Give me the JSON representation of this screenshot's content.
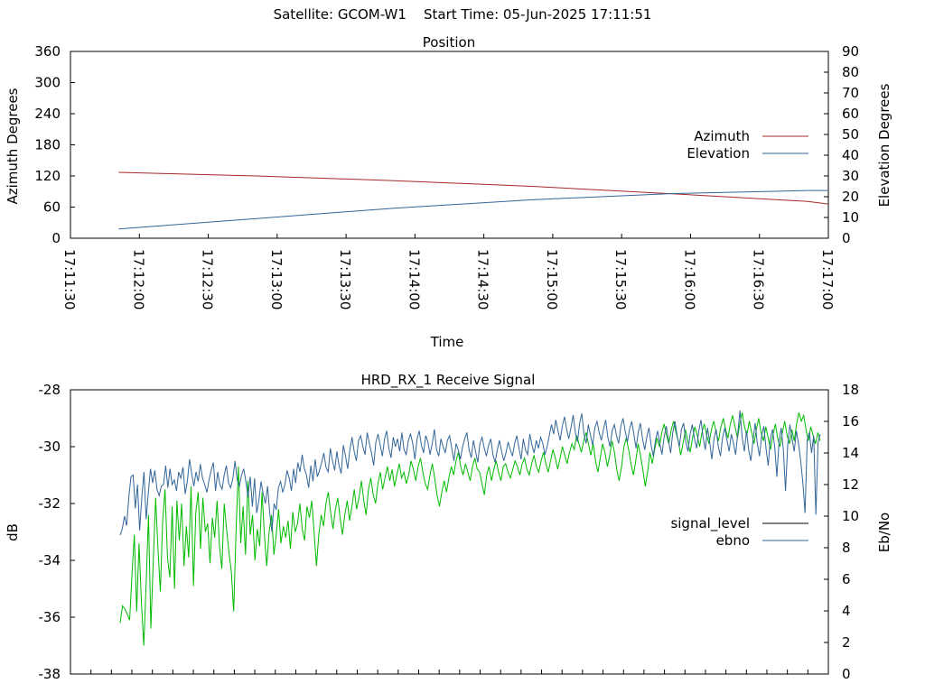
{
  "header": {
    "satellite_label": "Satellite: GCOM-W1",
    "start_time_label": "Start Time: 05-Jun-2025 17:11:51"
  },
  "chart_data": [
    {
      "type": "line",
      "title": "Position",
      "xlabel": "Time",
      "ylabel_left": "Azimuth Degrees",
      "ylabel_right": "Elevation Degrees",
      "x_ticks": [
        "17:11:30",
        "17:12:00",
        "17:12:30",
        "17:13:00",
        "17:13:30",
        "17:14:00",
        "17:14:30",
        "17:15:00",
        "17:15:30",
        "17:16:00",
        "17:16:30",
        "17:17:00"
      ],
      "xlim_seconds_after_171130": [
        0,
        330
      ],
      "ylim_left": [
        0,
        360
      ],
      "y_ticks_left": [
        "0",
        "60",
        "120",
        "180",
        "240",
        "300",
        "360"
      ],
      "ylim_right": [
        0,
        90
      ],
      "y_ticks_right": [
        "0",
        "10",
        "20",
        "30",
        "40",
        "50",
        "60",
        "70",
        "80",
        "90"
      ],
      "legend_position": "right-middle",
      "series": [
        {
          "name": "Azimuth",
          "axis": "left",
          "color": "#a52a2a",
          "x_times": [
            "17:11:51",
            "17:12:51",
            "17:13:51",
            "17:14:51",
            "17:15:51",
            "17:16:51",
            "17:17:00"
          ],
          "values": [
            127,
            120,
            111,
            100,
            86,
            71,
            66
          ]
        },
        {
          "name": "Elevation",
          "axis": "right",
          "color": "#336699",
          "x_times": [
            "17:11:51",
            "17:12:51",
            "17:13:51",
            "17:14:51",
            "17:15:51",
            "17:16:51",
            "17:17:00"
          ],
          "values": [
            4.5,
            9.5,
            14.5,
            18.5,
            21.5,
            23,
            23
          ]
        }
      ]
    },
    {
      "type": "line",
      "title": "HRD_RX_1 Receive Signal",
      "ylabel_left": "dB",
      "ylabel_right": "Eb/No",
      "ylim_left": [
        -38,
        -28
      ],
      "y_ticks_left": [
        "-38",
        "-36",
        "-34",
        "-32",
        "-30",
        "-28"
      ],
      "ylim_right": [
        0,
        18
      ],
      "y_ticks_right": [
        "0",
        "2",
        "4",
        "6",
        "8",
        "10",
        "12",
        "14",
        "16",
        "18"
      ],
      "legend_position": "right-middle",
      "series": [
        {
          "name": "signal_level",
          "axis": "left",
          "color": "#000000",
          "values": []
        },
        {
          "name": "ebno",
          "axis": "right",
          "color": "#336699",
          "values": [
            8.8,
            9.2,
            10.0,
            9.4,
            11.2,
            12.5,
            12.6,
            10.5,
            12.0,
            9.1,
            11.2,
            12.8,
            9.8,
            11.5,
            13.0,
            12.1,
            12.9,
            11.7,
            11.3,
            11.9,
            12.0,
            13.2,
            11.8,
            13.0,
            12.0,
            12.3,
            11.6,
            12.8,
            12.4,
            13.1,
            11.4,
            12.2,
            13.6,
            12.7,
            11.9,
            12.8,
            12.2,
            13.3,
            12.4,
            12.0,
            11.5,
            12.3,
            12.9,
            13.4,
            11.6,
            12.8,
            12.0,
            11.7,
            12.6,
            13.2,
            12.1,
            11.8,
            12.4,
            13.5,
            12.3,
            11.9,
            12.6,
            13.0,
            12.2,
            11.2,
            12.5,
            10.6,
            12.4,
            10.2,
            11.0,
            12.2,
            11.4,
            10.8,
            11.9,
            10.2,
            9.0,
            10.8,
            10.4,
            11.8,
            12.2,
            11.5,
            12.0,
            12.9,
            12.4,
            11.6,
            13.0,
            12.1,
            13.4,
            12.8,
            13.9,
            13.0,
            12.6,
            11.8,
            13.2,
            12.2,
            13.6,
            12.5,
            12.9,
            13.4,
            14.0,
            13.1,
            12.8,
            14.3,
            13.5,
            12.9,
            14.1,
            13.2,
            12.7,
            14.5,
            13.8,
            13.0,
            14.2,
            15.0,
            14.1,
            13.5,
            14.8,
            15.1,
            14.4,
            13.9,
            15.3,
            14.6,
            14.0,
            13.2,
            14.7,
            15.2,
            14.5,
            13.8,
            14.9,
            15.4,
            14.3,
            13.7,
            15.0,
            14.4,
            14.9,
            14.1,
            15.3,
            14.2,
            13.9,
            14.8,
            15.2,
            14.6,
            13.6,
            14.9,
            15.4,
            14.5,
            14.0,
            15.1,
            14.7,
            13.9,
            14.6,
            15.5,
            14.2,
            13.8,
            14.9,
            14.4,
            14.0,
            14.8,
            15.1,
            14.3,
            13.5,
            14.6,
            14.2,
            13.6,
            14.4,
            14.9,
            15.3,
            14.2,
            13.7,
            14.8,
            14.1,
            13.4,
            14.6,
            15.0,
            14.3,
            13.8,
            14.5,
            14.9,
            13.9,
            13.4,
            14.2,
            14.8,
            14.1,
            13.5,
            14.0,
            14.7,
            14.2,
            13.8,
            14.6,
            15.1,
            14.3,
            13.6,
            14.9,
            14.2,
            13.9,
            15.2,
            14.5,
            14.0,
            14.8,
            14.3,
            15.0,
            14.6,
            13.9,
            14.4,
            15.1,
            15.8,
            15.2,
            16.1,
            15.4,
            14.8,
            15.7,
            16.3,
            15.5,
            14.9,
            15.6,
            16.4,
            15.3,
            14.7,
            15.9,
            16.5,
            15.2,
            14.6,
            15.8,
            15.1,
            14.5,
            15.6,
            16.0,
            15.3,
            14.8,
            15.5,
            16.1,
            15.0,
            14.4,
            15.4,
            15.8,
            15.1,
            14.6,
            15.7,
            16.2,
            15.4,
            14.7,
            15.5,
            16.0,
            15.2,
            14.3,
            15.3,
            15.9,
            14.9,
            14.2,
            15.0,
            15.6,
            14.5,
            13.8,
            14.8,
            15.4,
            14.6,
            13.9,
            15.0,
            15.7,
            14.8,
            14.0,
            15.3,
            16.0,
            15.1,
            14.4,
            15.5,
            15.9,
            14.7,
            14.1,
            15.2,
            15.8,
            14.9,
            14.3,
            15.4,
            16.1,
            15.0,
            14.2,
            15.6,
            14.7,
            13.6,
            14.9,
            15.5,
            14.4,
            13.8,
            15.0,
            15.6,
            14.8,
            14.1,
            15.2,
            14.6,
            13.9,
            15.3,
            16.7,
            15.0,
            14.1,
            15.4,
            14.2,
            13.5,
            14.8,
            15.9,
            14.6,
            13.8,
            15.1,
            15.7,
            14.3,
            13.2,
            14.9,
            15.5,
            14.4,
            12.5,
            14.7,
            15.6,
            14.2,
            11.6,
            14.5,
            15.8,
            14.9,
            14.1,
            15.4,
            14.6,
            13.5,
            12.1,
            10.2,
            14.8,
            15.3,
            14.0,
            15.1,
            10.1,
            14.7,
            15.2
          ]
        },
        {
          "name": "",
          "axis": "left",
          "color": "#00bb00",
          "values": [
            -36.2,
            -35.6,
            -35.7,
            -35.9,
            -36.1,
            -34.5,
            -33.1,
            -35.8,
            -33.4,
            -35.5,
            -37.0,
            -34.8,
            -32.4,
            -36.4,
            -34.0,
            -31.8,
            -33.6,
            -35.1,
            -32.6,
            -31.5,
            -33.9,
            -34.6,
            -32.1,
            -35.0,
            -31.9,
            -33.3,
            -32.0,
            -34.2,
            -32.8,
            -33.9,
            -31.4,
            -34.9,
            -32.3,
            -31.6,
            -33.6,
            -31.8,
            -33.0,
            -32.7,
            -34.1,
            -32.5,
            -33.2,
            -31.9,
            -33.5,
            -34.3,
            -32.0,
            -32.9,
            -33.7,
            -34.4,
            -35.8,
            -33.0,
            -30.7,
            -33.4,
            -32.1,
            -33.8,
            -31.2,
            -33.1,
            -32.4,
            -34.0,
            -32.9,
            -33.5,
            -31.6,
            -33.1,
            -34.2,
            -33.0,
            -32.4,
            -33.8,
            -33.1,
            -32.2,
            -33.4,
            -32.8,
            -33.2,
            -32.6,
            -33.6,
            -32.3,
            -33.0,
            -32.7,
            -32.0,
            -32.9,
            -33.3,
            -32.1,
            -32.5,
            -31.9,
            -33.0,
            -34.2,
            -33.1,
            -32.4,
            -32.8,
            -32.0,
            -31.6,
            -32.3,
            -32.9,
            -32.2,
            -31.8,
            -32.5,
            -33.1,
            -32.4,
            -31.9,
            -32.6,
            -32.1,
            -31.5,
            -32.2,
            -31.8,
            -31.2,
            -31.9,
            -32.4,
            -31.5,
            -31.1,
            -31.7,
            -32.0,
            -31.3,
            -30.9,
            -31.5,
            -31.1,
            -30.7,
            -31.2,
            -30.8,
            -31.4,
            -31.0,
            -30.6,
            -31.1,
            -30.9,
            -31.3,
            -31.0,
            -30.5,
            -30.8,
            -31.2,
            -30.7,
            -30.4,
            -30.9,
            -31.3,
            -31.5,
            -31.0,
            -30.6,
            -31.1,
            -31.7,
            -32.1,
            -31.6,
            -31.2,
            -31.6,
            -31.1,
            -30.7,
            -31.0,
            -30.5,
            -30.2,
            -30.7,
            -31.0,
            -30.6,
            -30.9,
            -31.2,
            -30.7,
            -30.4,
            -30.8,
            -30.9,
            -31.3,
            -31.7,
            -31.0,
            -30.7,
            -31.2,
            -30.8,
            -30.5,
            -30.9,
            -31.2,
            -30.7,
            -30.6,
            -30.9,
            -31.1,
            -30.8,
            -30.5,
            -30.7,
            -31.0,
            -30.6,
            -30.4,
            -30.8,
            -31.0,
            -30.6,
            -30.3,
            -30.7,
            -30.9,
            -30.5,
            -30.2,
            -30.6,
            -30.9,
            -30.5,
            -30.1,
            -30.4,
            -30.8,
            -30.4,
            -30.0,
            -30.3,
            -30.6,
            -30.2,
            -29.9,
            -30.1,
            -29.6,
            -29.9,
            -30.2,
            -29.8,
            -29.5,
            -29.9,
            -30.3,
            -29.9,
            -30.5,
            -30.9,
            -30.4,
            -29.9,
            -30.2,
            -30.7,
            -30.3,
            -29.8,
            -30.2,
            -30.8,
            -31.2,
            -30.7,
            -30.0,
            -29.7,
            -30.1,
            -30.6,
            -31.0,
            -30.5,
            -29.9,
            -30.3,
            -30.8,
            -31.4,
            -30.9,
            -30.2,
            -30.6,
            -30.1,
            -29.7,
            -30.0,
            -29.5,
            -29.2,
            -29.6,
            -29.9,
            -29.4,
            -29.1,
            -29.5,
            -29.8,
            -30.3,
            -29.9,
            -29.4,
            -29.8,
            -30.2,
            -29.7,
            -29.3,
            -29.6,
            -30.0,
            -29.5,
            -29.2,
            -29.6,
            -29.9,
            -29.4,
            -29.1,
            -29.5,
            -29.8,
            -29.3,
            -29.0,
            -29.4,
            -29.7,
            -29.2,
            -28.9,
            -29.3,
            -29.7,
            -29.2,
            -28.8,
            -29.3,
            -29.6,
            -29.1,
            -29.5,
            -29.9,
            -29.4,
            -29.0,
            -29.5,
            -29.8,
            -29.3,
            -29.7,
            -30.1,
            -29.6,
            -29.2,
            -29.7,
            -30.0,
            -29.5,
            -29.1,
            -29.6,
            -29.9,
            -29.4,
            -29.8,
            -29.2,
            -28.8,
            -29.1,
            -28.9,
            -29.4,
            -29.8,
            -29.3,
            -29.6,
            -29.9,
            -29.5,
            -29.8
          ]
        }
      ]
    }
  ]
}
